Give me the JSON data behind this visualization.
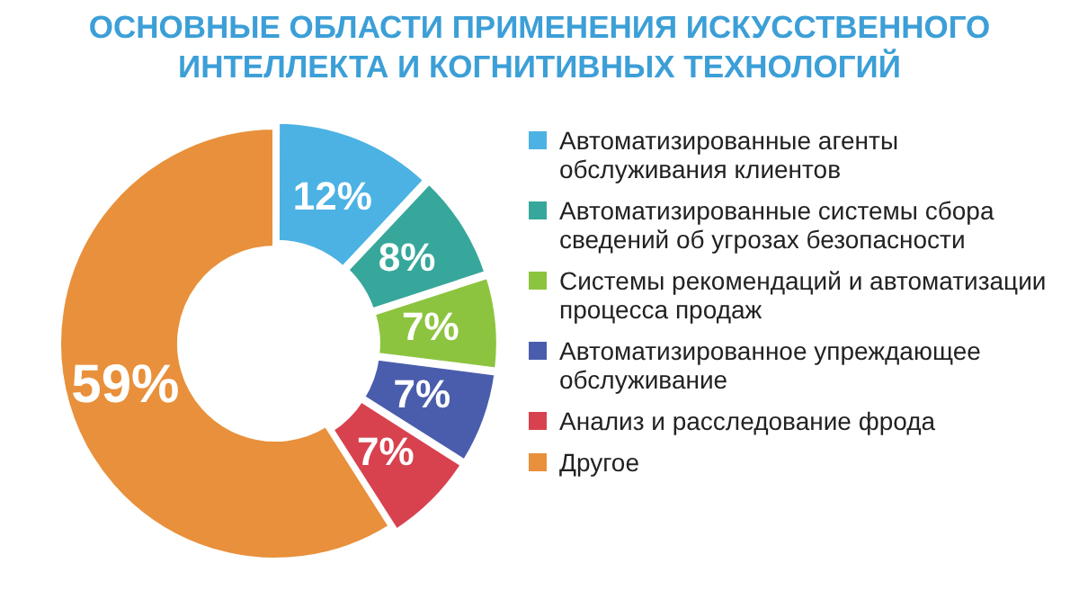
{
  "chart_data": {
    "type": "donut",
    "title": "ОСНОВНЫЕ ОБЛАСТИ ПРИМЕНЕНИЯ ИСКУССТВЕННОГО\nИНТЕЛЛЕКТА И КОГНИТИВНЫХ ТЕХНОЛОГИЙ",
    "categories": [
      "Автоматизированные агенты обслуживания клиентов",
      "Автоматизированные системы сбора сведений об угрозах безопасности",
      "Системы рекомендаций и автоматизации процесса продаж",
      "Автоматизированное упреждающее обслуживание",
      "Анализ и расследование фрода",
      "Другое"
    ],
    "values": [
      12,
      8,
      7,
      7,
      7,
      59
    ],
    "colors": [
      "#4cb2e4",
      "#37a79b",
      "#8dc43f",
      "#4a5dac",
      "#d8424f",
      "#e8903b"
    ],
    "value_labels": [
      "12%",
      "8%",
      "7%",
      "7%",
      "7%",
      "59%"
    ],
    "legend": "right"
  }
}
